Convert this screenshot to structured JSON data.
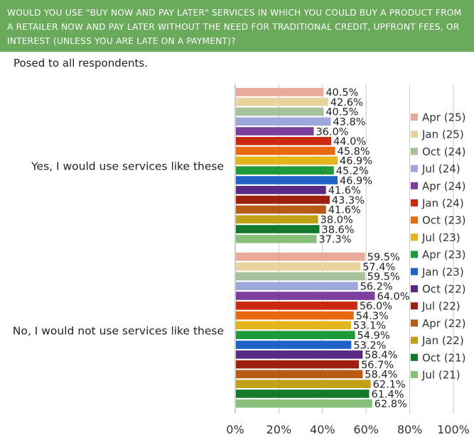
{
  "header": {
    "question": "WOULD YOU USE \"BUY NOW AND PAY LATER\" SERVICES IN WHICH YOU COULD BUY A PRODUCT FROM A RETAILER NOW AND PAY LATER WITHOUT THE NEED FOR TRADITIONAL CREDIT, UPFRONT FEES, OR INTEREST (UNLESS YOU ARE LATE ON A PAYMENT)?"
  },
  "subtitle": "Posed to all respondents.",
  "chart_data": {
    "type": "bar",
    "orientation": "horizontal",
    "categories": [
      "Yes, I would use services like these",
      "No, I would not use services like these"
    ],
    "xlim": [
      0,
      100
    ],
    "xticks": [
      "0%",
      "20%",
      "40%",
      "60%",
      "80%",
      "100%"
    ],
    "legend_position": "right",
    "grid": true,
    "series": [
      {
        "name": "Apr (25)",
        "color": "#e8a99b",
        "values": [
          40.5,
          59.5
        ]
      },
      {
        "name": "Jan (25)",
        "color": "#e7d59d",
        "values": [
          42.6,
          57.4
        ]
      },
      {
        "name": "Oct (24)",
        "color": "#a6c29a",
        "values": [
          40.5,
          59.5
        ]
      },
      {
        "name": "Jul (24)",
        "color": "#9fa8dd",
        "values": [
          43.8,
          56.2
        ]
      },
      {
        "name": "Apr (24)",
        "color": "#7b3f9e",
        "values": [
          36.0,
          64.0
        ]
      },
      {
        "name": "Jan (24)",
        "color": "#cc2a10",
        "values": [
          44.0,
          56.0
        ]
      },
      {
        "name": "Oct (23)",
        "color": "#e8690f",
        "values": [
          45.8,
          54.3
        ]
      },
      {
        "name": "Jul (23)",
        "color": "#e4b51a",
        "values": [
          46.9,
          53.1
        ]
      },
      {
        "name": "Apr (23)",
        "color": "#1f9a3a",
        "values": [
          45.2,
          54.9
        ]
      },
      {
        "name": "Jan (23)",
        "color": "#1f63c9",
        "values": [
          46.9,
          53.2
        ]
      },
      {
        "name": "Oct (22)",
        "color": "#5b2a85",
        "values": [
          41.6,
          58.4
        ]
      },
      {
        "name": "Jul (22)",
        "color": "#a0200f",
        "values": [
          43.3,
          56.7
        ]
      },
      {
        "name": "Apr (22)",
        "color": "#b85a14",
        "values": [
          41.6,
          58.4
        ]
      },
      {
        "name": "Jan (22)",
        "color": "#c2a017",
        "values": [
          38.0,
          62.1
        ]
      },
      {
        "name": "Oct (21)",
        "color": "#127a2a",
        "values": [
          38.6,
          61.4
        ]
      },
      {
        "name": "Jul (21)",
        "color": "#86c07a",
        "values": [
          37.3,
          62.8
        ]
      }
    ]
  }
}
